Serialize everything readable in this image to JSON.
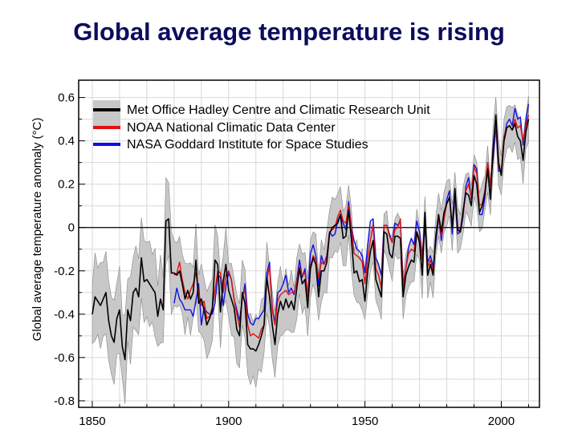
{
  "title": "Global average temperature is rising",
  "chart_data": {
    "type": "line",
    "title": "Global average temperature is rising",
    "xlabel": "",
    "ylabel": "Global average temperature anomaly (°C)",
    "xlim": [
      1845,
      2014
    ],
    "ylim": [
      -0.83,
      0.68
    ],
    "xticks": [
      "1850",
      "1900",
      "1950",
      "2000"
    ],
    "yticks": [
      "0.6",
      "0.4",
      "0.2",
      "0",
      "-0.2",
      "-0.4",
      "-0.6",
      "-0.8"
    ],
    "grid": true,
    "legend_position": "top-left",
    "reference_line": 0,
    "band_color": "#c8c8c8",
    "series": [
      {
        "name": "Met Office Hadley Centre and Climatic Research Unit",
        "color": "#000000",
        "start_year": 1850,
        "values": [
          -0.4,
          -0.32,
          -0.34,
          -0.36,
          -0.33,
          -0.3,
          -0.43,
          -0.5,
          -0.53,
          -0.42,
          -0.38,
          -0.55,
          -0.61,
          -0.38,
          -0.43,
          -0.3,
          -0.28,
          -0.32,
          -0.14,
          -0.25,
          -0.24,
          -0.26,
          -0.28,
          -0.3,
          -0.41,
          -0.33,
          -0.38,
          0.03,
          0.04,
          -0.21,
          -0.21,
          -0.22,
          -0.2,
          -0.26,
          -0.33,
          -0.29,
          -0.33,
          -0.3,
          -0.15,
          -0.35,
          -0.33,
          -0.38,
          -0.45,
          -0.42,
          -0.38,
          -0.15,
          -0.17,
          -0.39,
          -0.25,
          -0.17,
          -0.29,
          -0.33,
          -0.37,
          -0.47,
          -0.5,
          -0.3,
          -0.35,
          -0.54,
          -0.56,
          -0.56,
          -0.57,
          -0.54,
          -0.5,
          -0.45,
          -0.23,
          -0.32,
          -0.45,
          -0.54,
          -0.4,
          -0.34,
          -0.38,
          -0.33,
          -0.37,
          -0.34,
          -0.38,
          -0.28,
          -0.19,
          -0.26,
          -0.24,
          -0.37,
          -0.19,
          -0.14,
          -0.17,
          -0.32,
          -0.2,
          -0.2,
          -0.16,
          -0.03,
          0.0,
          0.01,
          0.02,
          0.06,
          -0.05,
          -0.04,
          0.08,
          -0.05,
          -0.21,
          -0.2,
          -0.25,
          -0.24,
          -0.34,
          -0.2,
          -0.11,
          -0.06,
          -0.24,
          -0.28,
          -0.32,
          -0.02,
          -0.03,
          -0.12,
          -0.14,
          -0.04,
          -0.04,
          -0.05,
          -0.32,
          -0.22,
          -0.18,
          -0.15,
          -0.16,
          -0.02,
          -0.07,
          -0.22,
          0.07,
          -0.22,
          -0.17,
          -0.22,
          -0.04,
          0.06,
          -0.02,
          0.07,
          0.11,
          0.14,
          0.0,
          0.18,
          -0.01,
          -0.02,
          0.08,
          0.16,
          0.15,
          0.1,
          0.24,
          0.2,
          0.07,
          0.1,
          0.16,
          0.27,
          0.13,
          0.36,
          0.52,
          0.3,
          0.24,
          0.4,
          0.46,
          0.47,
          0.45,
          0.48,
          0.42,
          0.4,
          0.31,
          0.44,
          0.5
        ],
        "uncertainty": [
          {
            "from": 1850,
            "to": 1879,
            "value": 0.17
          },
          {
            "from": 1880,
            "to": 1919,
            "value": 0.14
          },
          {
            "from": 1920,
            "to": 1949,
            "value": 0.12
          },
          {
            "from": 1950,
            "to": 2010,
            "value": 0.09
          }
        ]
      },
      {
        "name": "NOAA National Climatic Data Center",
        "color": "#e01010",
        "start_year": 1880,
        "values": [
          -0.22,
          -0.21,
          -0.16,
          -0.24,
          -0.3,
          -0.33,
          -0.29,
          -0.26,
          -0.21,
          -0.3,
          -0.36,
          -0.34,
          -0.42,
          -0.41,
          -0.37,
          -0.29,
          -0.2,
          -0.21,
          -0.3,
          -0.22,
          -0.2,
          -0.24,
          -0.33,
          -0.4,
          -0.46,
          -0.32,
          -0.29,
          -0.45,
          -0.5,
          -0.49,
          -0.5,
          -0.51,
          -0.47,
          -0.45,
          -0.24,
          -0.18,
          -0.38,
          -0.45,
          -0.34,
          -0.31,
          -0.3,
          -0.29,
          -0.31,
          -0.3,
          -0.3,
          -0.25,
          -0.18,
          -0.22,
          -0.21,
          -0.32,
          -0.18,
          -0.13,
          -0.15,
          -0.23,
          -0.16,
          -0.17,
          -0.14,
          -0.02,
          -0.01,
          0.0,
          0.05,
          0.08,
          0.03,
          0.02,
          0.1,
          0.0,
          -0.12,
          -0.13,
          -0.14,
          -0.16,
          -0.26,
          -0.14,
          -0.06,
          0.01,
          -0.19,
          -0.22,
          -0.28,
          0.01,
          0.01,
          -0.04,
          -0.07,
          -0.01,
          0.0,
          0.04,
          -0.28,
          -0.19,
          -0.12,
          -0.1,
          -0.11,
          -0.02,
          -0.05,
          -0.15,
          0.04,
          -0.18,
          -0.15,
          -0.2,
          -0.04,
          0.05,
          -0.04,
          0.04,
          0.11,
          0.14,
          0.01,
          0.17,
          0.0,
          -0.01,
          0.06,
          0.17,
          0.2,
          0.14,
          0.28,
          0.25,
          0.1,
          0.11,
          0.17,
          0.3,
          0.19,
          0.38,
          0.5,
          0.28,
          0.26,
          0.42,
          0.46,
          0.47,
          0.45,
          0.5,
          0.46,
          0.47,
          0.4,
          0.47,
          0.52
        ]
      },
      {
        "name": "NASA Goddard Institute for Space Studies",
        "color": "#1010e0",
        "start_year": 1880,
        "values": [
          -0.35,
          -0.28,
          -0.33,
          -0.35,
          -0.38,
          -0.38,
          -0.38,
          -0.41,
          -0.34,
          -0.26,
          -0.45,
          -0.37,
          -0.39,
          -0.4,
          -0.4,
          -0.35,
          -0.22,
          -0.23,
          -0.36,
          -0.27,
          -0.21,
          -0.24,
          -0.33,
          -0.38,
          -0.43,
          -0.33,
          -0.26,
          -0.4,
          -0.44,
          -0.45,
          -0.42,
          -0.42,
          -0.4,
          -0.38,
          -0.21,
          -0.16,
          -0.37,
          -0.44,
          -0.3,
          -0.29,
          -0.26,
          -0.22,
          -0.3,
          -0.28,
          -0.31,
          -0.24,
          -0.15,
          -0.23,
          -0.19,
          -0.32,
          -0.12,
          -0.08,
          -0.13,
          -0.27,
          -0.13,
          -0.17,
          -0.13,
          -0.02,
          -0.04,
          -0.03,
          0.03,
          0.06,
          0.02,
          -0.01,
          0.12,
          0.0,
          -0.06,
          -0.1,
          -0.11,
          -0.13,
          -0.21,
          -0.08,
          0.03,
          0.04,
          -0.14,
          -0.17,
          -0.22,
          0.01,
          0.01,
          -0.03,
          -0.07,
          0.02,
          0.01,
          0.03,
          -0.26,
          -0.19,
          -0.09,
          -0.05,
          -0.08,
          0.03,
          -0.02,
          -0.13,
          0.0,
          -0.16,
          -0.13,
          -0.18,
          -0.07,
          0.05,
          -0.06,
          0.04,
          0.13,
          0.17,
          -0.03,
          0.15,
          -0.03,
          -0.02,
          0.05,
          0.19,
          0.23,
          0.13,
          0.29,
          0.27,
          0.06,
          0.06,
          0.14,
          0.3,
          0.2,
          0.32,
          0.48,
          0.26,
          0.26,
          0.41,
          0.48,
          0.5,
          0.47,
          0.55,
          0.5,
          0.51,
          0.38,
          0.49,
          0.57
        ]
      }
    ]
  }
}
